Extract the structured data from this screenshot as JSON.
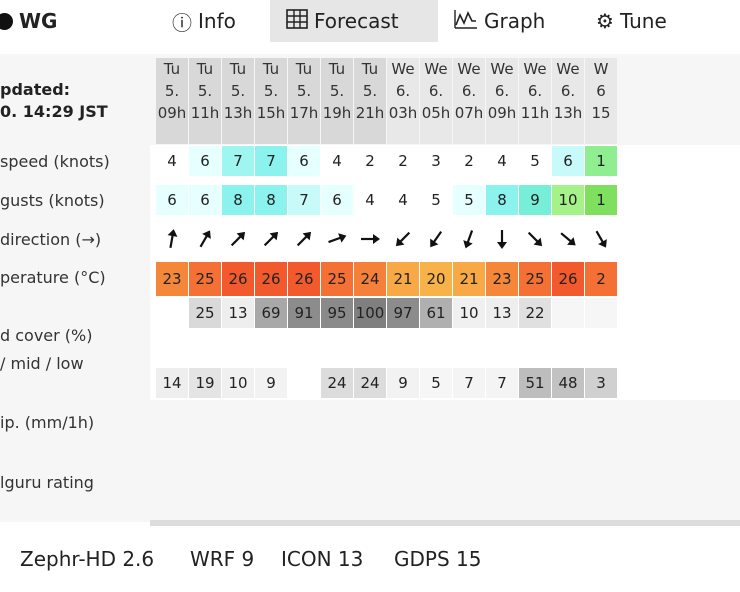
{
  "tabs": {
    "logo_label": "WG",
    "info_label": "Info",
    "forecast_label": "Forecast",
    "graph_label": "Graph",
    "tune_label": "Tune"
  },
  "labels": {
    "updated_line1": "pdated:",
    "updated_line2": "0. 14:29 JST",
    "wind_speed": "speed (knots)",
    "wind_gusts": "gusts (knots)",
    "wind_direction": "direction (→)",
    "temperature": "perature (°C)",
    "cloud_cover": "d cover (%)",
    "cloud_levels": "/ mid / low",
    "precip": "ip. (mm/1h)",
    "rating": "lguru rating"
  },
  "columns": [
    {
      "day": "Tu",
      "date": "5.",
      "hour": "09h"
    },
    {
      "day": "Tu",
      "date": "5.",
      "hour": "11h"
    },
    {
      "day": "Tu",
      "date": "5.",
      "hour": "13h"
    },
    {
      "day": "Tu",
      "date": "5.",
      "hour": "15h"
    },
    {
      "day": "Tu",
      "date": "5.",
      "hour": "17h"
    },
    {
      "day": "Tu",
      "date": "5.",
      "hour": "19h"
    },
    {
      "day": "Tu",
      "date": "5.",
      "hour": "21h"
    },
    {
      "day": "We",
      "date": "6.",
      "hour": "03h"
    },
    {
      "day": "We",
      "date": "6.",
      "hour": "05h"
    },
    {
      "day": "We",
      "date": "6.",
      "hour": "07h"
    },
    {
      "day": "We",
      "date": "6.",
      "hour": "09h"
    },
    {
      "day": "We",
      "date": "6.",
      "hour": "11h"
    },
    {
      "day": "We",
      "date": "6.",
      "hour": "13h"
    },
    {
      "day": "W",
      "date": "6",
      "hour": "15"
    }
  ],
  "wind_speed": [
    "4",
    "6",
    "7",
    "7",
    "6",
    "4",
    "2",
    "2",
    "3",
    "2",
    "4",
    "5",
    "6",
    "1"
  ],
  "wind_speed_colors": [
    "#ffffff",
    "#e6ffff",
    "#9ff5f0",
    "#8cf2ee",
    "#e6ffff",
    "#ffffff",
    "#ffffff",
    "#ffffff",
    "#ffffff",
    "#ffffff",
    "#ffffff",
    "#ffffff",
    "#c8fafa",
    "#8fee8f"
  ],
  "wind_gusts": [
    "6",
    "6",
    "8",
    "8",
    "7",
    "6",
    "4",
    "4",
    "5",
    "5",
    "8",
    "9",
    "10",
    "1"
  ],
  "wind_gusts_colors": [
    "#e6ffff",
    "#e6ffff",
    "#8cf2ee",
    "#8cf2ee",
    "#c8fafa",
    "#e6ffff",
    "#ffffff",
    "#ffffff",
    "#ffffff",
    "#e6ffff",
    "#8cf2ee",
    "#77eed8",
    "#a6f28a",
    "#7fe060"
  ],
  "wind_direction_deg": [
    10,
    30,
    45,
    45,
    45,
    70,
    90,
    225,
    215,
    200,
    180,
    135,
    130,
    150
  ],
  "temperature": [
    "23",
    "25",
    "26",
    "26",
    "26",
    "25",
    "24",
    "21",
    "20",
    "21",
    "23",
    "25",
    "26",
    "2"
  ],
  "temperature_colors": [
    "#f5873a",
    "#f57035",
    "#f25a2e",
    "#f25a2e",
    "#f25a2e",
    "#f57035",
    "#f5803a",
    "#f8a844",
    "#f8b24a",
    "#f8a844",
    "#f5873a",
    "#f57035",
    "#f25a2e",
    "#f57035"
  ],
  "cloud_cover": [
    "",
    "25",
    "13",
    "69",
    "91",
    "95",
    "100",
    "97",
    "61",
    "10",
    "13",
    "22",
    "",
    ""
  ],
  "cloud_cover_colors": [
    "#ffffff",
    "#d9d9d9",
    "#eeeeee",
    "#a8a8a8",
    "#8c8c8c",
    "#8a8a8a",
    "#7f7f7f",
    "#8c8c8c",
    "#b0b0b0",
    "#f0f0f0",
    "#eeeeee",
    "#e0e0e0",
    "#f6f6f6",
    "#f6f6f6"
  ],
  "cloud_low": [
    "14",
    "19",
    "10",
    "9",
    "",
    "24",
    "24",
    "9",
    "5",
    "7",
    "7",
    "51",
    "48",
    "3"
  ],
  "cloud_low_colors": [
    "#eeeeee",
    "#e4e4e4",
    "#f0f0f0",
    "#f2f2f2",
    "#ffffff",
    "#dcdcdc",
    "#dcdcdc",
    "#f2f2f2",
    "#f6f6f6",
    "#f4f4f4",
    "#f4f4f4",
    "#bdbdbd",
    "#c2c2c2",
    "#d0d0d0"
  ],
  "models": [
    "Zephr-HD 2.6",
    "WRF 9",
    "ICON 13",
    "GDPS 15"
  ]
}
